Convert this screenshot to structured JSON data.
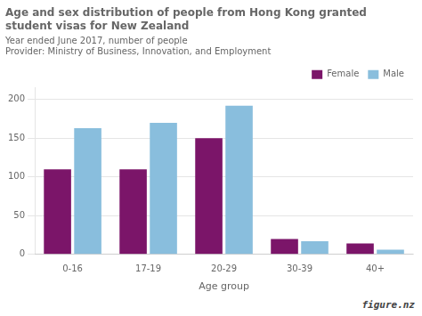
{
  "chart_data": {
    "type": "bar",
    "title": [
      "Age and sex distribution of people from Hong Kong granted",
      "student visas for New Zealand"
    ],
    "subtitle": "Year ended June 2017, number of people",
    "annotations": [
      "Provider: Ministry of Business, Innovation, and Employment",
      "figure.nz"
    ],
    "x_label": "Age group",
    "categories": [
      "0-16",
      "17-19",
      "20-29",
      "30-39",
      "40+"
    ],
    "series": [
      {
        "name": "Female",
        "color": "#7b1569",
        "values": [
          110,
          110,
          150,
          20,
          14
        ]
      },
      {
        "name": "Male",
        "color": "#89bedd",
        "values": [
          163,
          170,
          192,
          17,
          6
        ]
      }
    ],
    "ylim": [
      0,
      215
    ],
    "yticks": [
      0,
      50,
      100,
      150,
      200
    ],
    "grid": true,
    "legend": "upper right"
  }
}
